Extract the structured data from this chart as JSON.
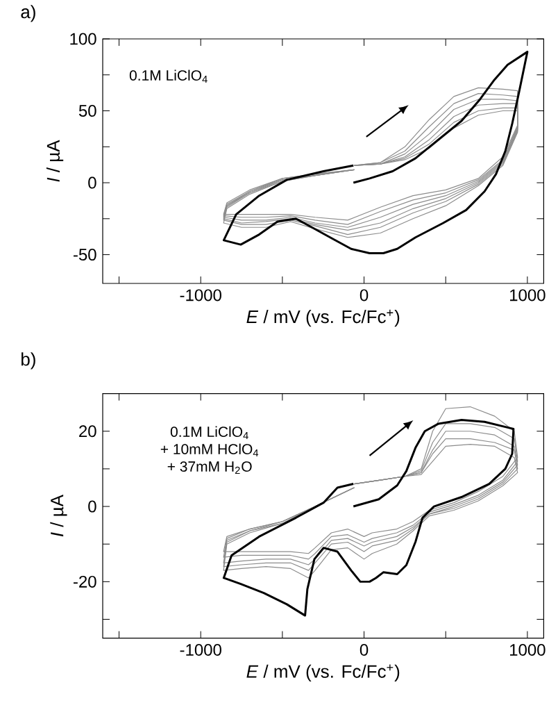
{
  "chart_data": [
    {
      "type": "line",
      "title": "a)",
      "xlabel": "*E* / mV (vs. Fc/Fc$^{+}$)",
      "ylabel": "*I* / µA",
      "xlim": [
        -1600,
        1100
      ],
      "ylim": [
        -70,
        100
      ],
      "xticks": [
        {
          "value": -1500,
          "label": null
        },
        -1000,
        {
          "value": -500,
          "label": null
        },
        0,
        {
          "value": 500,
          "label": null
        },
        1000
      ],
      "yticks": [
        -50,
        {
          "value": -25,
          "label": null
        },
        0,
        {
          "value": 25,
          "label": null
        },
        50,
        {
          "value": 75,
          "label": null
        },
        100
      ],
      "annotations": [
        "0.1M LiClO$_{4}$"
      ],
      "series": [
        {
          "color": "#8c8c8c",
          "x": [
            -60,
            100,
            250,
            400,
            550,
            700,
            850,
            940,
            940,
            850,
            700,
            500,
            300,
            100,
            -100,
            -300,
            -450,
            -600,
            -750,
            -860,
            -840,
            -700,
            -500,
            -300,
            -60
          ],
          "values": [
            12,
            14,
            25,
            44,
            60,
            66,
            65,
            64,
            40,
            18,
            3,
            -5,
            -9,
            -17,
            -26,
            -24,
            -22,
            -22,
            -22,
            -22,
            -14,
            -5,
            3,
            6,
            9
          ]
        },
        {
          "color": "#8c8c8c",
          "x": [
            -60,
            100,
            250,
            400,
            550,
            700,
            850,
            940,
            940,
            850,
            700,
            500,
            300,
            100,
            -100,
            -300,
            -450,
            -600,
            -750,
            -860,
            -840,
            -700,
            -500,
            -300,
            -60
          ],
          "values": [
            12,
            14,
            22,
            39,
            55,
            62,
            61,
            60,
            39,
            16,
            2,
            -7,
            -12,
            -20,
            -29,
            -26,
            -23,
            -24,
            -24,
            -23,
            -15,
            -6,
            3,
            6,
            9
          ]
        },
        {
          "color": "#8c8c8c",
          "x": [
            -60,
            100,
            250,
            400,
            550,
            700,
            850,
            940,
            940,
            850,
            700,
            500,
            300,
            100,
            -100,
            -300,
            -450,
            -600,
            -750,
            -860,
            -840,
            -700,
            -500,
            -300,
            -60
          ],
          "values": [
            12,
            13,
            20,
            34,
            51,
            58,
            58,
            57,
            38,
            15,
            1,
            -9,
            -15,
            -24,
            -31,
            -28,
            -24,
            -26,
            -26,
            -24,
            -16,
            -6,
            2,
            5,
            9
          ]
        },
        {
          "color": "#8c8c8c",
          "x": [
            -60,
            100,
            250,
            400,
            550,
            700,
            850,
            940,
            940,
            850,
            700,
            500,
            300,
            100,
            -100,
            -300,
            -450,
            -600,
            -750,
            -860,
            -840,
            -700,
            -500,
            -300,
            -60
          ],
          "values": [
            12,
            13,
            18,
            30,
            46,
            54,
            55,
            55,
            37,
            14,
            0,
            -11,
            -18,
            -28,
            -33,
            -29,
            -25,
            -27,
            -28,
            -25,
            -16,
            -7,
            2,
            5,
            9
          ]
        },
        {
          "color": "#8c8c8c",
          "x": [
            -60,
            100,
            250,
            400,
            550,
            700,
            850,
            940,
            940,
            850,
            700,
            500,
            300,
            100,
            -100,
            -300,
            -450,
            -600,
            -750,
            -860,
            -840,
            -700,
            -500,
            -300,
            -60
          ],
          "values": [
            12,
            13,
            17,
            27,
            42,
            50,
            52,
            52,
            36,
            13,
            -1,
            -13,
            -21,
            -31,
            -36,
            -30,
            -26,
            -29,
            -29,
            -26,
            -17,
            -7,
            1,
            5,
            9
          ]
        },
        {
          "color": "#8c8c8c",
          "x": [
            -60,
            100,
            250,
            400,
            550,
            700,
            850,
            940,
            940,
            850,
            700,
            500,
            300,
            100,
            -100,
            -300,
            -450,
            -600,
            -750,
            -860,
            -840,
            -700,
            -500,
            -300,
            -60
          ],
          "values": [
            12,
            13,
            16,
            24,
            38,
            47,
            50,
            50,
            35,
            12,
            -2,
            -16,
            -25,
            -35,
            -38,
            -32,
            -27,
            -31,
            -31,
            -28,
            -18,
            -8,
            1,
            5,
            9
          ]
        },
        {
          "color": "#000000",
          "x": [
            -65,
            34,
            175,
            315,
            456,
            597,
            710,
            794,
            879,
            1000,
            949,
            907,
            865,
            808,
            738,
            625,
            485,
            315,
            203,
            118,
            34,
            -79,
            -192,
            -304,
            -417,
            -530,
            -642,
            -755,
            -859,
            -783,
            -642,
            -473,
            -248,
            -65
          ],
          "values": [
            0,
            3,
            8,
            17,
            30,
            43,
            58,
            71,
            82,
            91,
            63,
            41,
            22,
            6,
            -6,
            -19,
            -28,
            -38,
            -46,
            -49,
            -49,
            -46,
            -39,
            -32,
            -25,
            -27,
            -36,
            -43,
            -40,
            -22,
            -9,
            2,
            8,
            12
          ]
        }
      ]
    },
    {
      "type": "line",
      "title": "b)",
      "xlabel": "*E* / mV (vs. Fc/Fc$^{+}$)",
      "ylabel": "*I* / µA",
      "xlim": [
        -1600,
        1100
      ],
      "ylim": [
        -35,
        30
      ],
      "xticks": [
        {
          "value": -1500,
          "label": null
        },
        -1000,
        {
          "value": -500,
          "label": null
        },
        0,
        {
          "value": 500,
          "label": null
        },
        1000
      ],
      "yticks": [
        {
          "value": -30,
          "label": null
        },
        -20,
        {
          "value": -10,
          "label": null
        },
        0,
        {
          "value": 10,
          "label": null
        },
        20
      ],
      "annotations": [
        "0.1M LiClO$_{4}$",
        "+ 10mM HClO$_{4}$",
        "+ 37mM H$_{2}$O"
      ],
      "series": [
        {
          "color": "#8c8c8c",
          "x": [
            -60,
            100,
            250,
            350,
            420,
            500,
            650,
            800,
            920,
            940,
            850,
            700,
            550,
            400,
            300,
            200,
            50,
            0,
            -100,
            -200,
            -300,
            -340,
            -450,
            -600,
            -750,
            -860,
            -840,
            -700,
            -500,
            -300,
            -60
          ],
          "values": [
            6,
            7,
            8,
            10,
            20,
            26,
            26.5,
            24,
            20,
            13,
            8,
            4,
            1,
            -1,
            -4,
            -6,
            -7,
            -8,
            -6,
            -7,
            -11,
            -12.5,
            -12,
            -12,
            -12,
            -12,
            -8,
            -6,
            -4,
            0,
            5
          ]
        },
        {
          "color": "#8c8c8c",
          "x": [
            -60,
            100,
            250,
            350,
            420,
            500,
            650,
            800,
            920,
            940,
            850,
            700,
            550,
            400,
            300,
            200,
            50,
            0,
            -100,
            -200,
            -300,
            -340,
            -450,
            -600,
            -750,
            -860,
            -840,
            -700,
            -500,
            -300,
            -60
          ],
          "values": [
            6,
            7,
            8,
            9.5,
            17,
            22,
            22,
            21,
            18,
            12,
            7,
            3,
            0.5,
            -1.5,
            -5,
            -7,
            -8.5,
            -9.5,
            -7.5,
            -8,
            -12.5,
            -14,
            -13,
            -13,
            -13,
            -13.5,
            -8.5,
            -6,
            -4,
            0,
            5
          ]
        },
        {
          "color": "#8c8c8c",
          "x": [
            -60,
            100,
            250,
            350,
            420,
            500,
            650,
            800,
            920,
            940,
            850,
            700,
            550,
            400,
            300,
            200,
            50,
            0,
            -100,
            -200,
            -300,
            -340,
            -450,
            -600,
            -750,
            -860,
            -840,
            -700,
            -500,
            -300,
            -60
          ],
          "values": [
            6,
            7,
            8,
            9,
            15,
            20,
            20,
            19,
            16,
            11,
            6.5,
            2.5,
            0,
            -2,
            -5.5,
            -8,
            -9.5,
            -10.5,
            -8.5,
            -9,
            -14,
            -15.5,
            -14,
            -14,
            -14.5,
            -15,
            -9,
            -6.5,
            -4,
            0,
            5
          ]
        },
        {
          "color": "#8c8c8c",
          "x": [
            -60,
            100,
            250,
            350,
            420,
            500,
            650,
            800,
            920,
            940,
            850,
            700,
            550,
            400,
            300,
            200,
            50,
            0,
            -100,
            -200,
            -300,
            -340,
            -450,
            -600,
            -750,
            -860,
            -840,
            -700,
            -500,
            -300,
            -60
          ],
          "values": [
            6,
            7,
            8,
            9,
            14,
            18,
            18,
            17,
            15,
            10,
            6,
            2,
            -0.5,
            -2,
            -6,
            -9,
            -10.5,
            -12,
            -9.5,
            -10,
            -15,
            -17,
            -15,
            -15,
            -15.5,
            -16,
            -9.5,
            -6.5,
            -4.5,
            0,
            5
          ]
        },
        {
          "color": "#8c8c8c",
          "x": [
            -60,
            100,
            250,
            350,
            420,
            500,
            650,
            800,
            920,
            940,
            850,
            700,
            550,
            400,
            300,
            200,
            50,
            0,
            -100,
            -200,
            -300,
            -340,
            -450,
            -600,
            -750,
            -860,
            -840,
            -700,
            -500,
            -300,
            -60
          ],
          "values": [
            6,
            7,
            8,
            8.5,
            12,
            16,
            16.5,
            16,
            13,
            9,
            5.5,
            1.5,
            -1,
            -2.5,
            -6.5,
            -10,
            -12.5,
            -14,
            -11,
            -11.5,
            -17,
            -19,
            -16.5,
            -16,
            -16.5,
            -17,
            -10,
            -7,
            -4.5,
            0,
            5
          ]
        },
        {
          "color": "#000000",
          "x": [
            -65,
            90,
            203,
            259,
            315,
            372,
            456,
            597,
            738,
            879,
            915,
            907,
            865,
            766,
            597,
            428,
            358,
            315,
            259,
            203,
            118,
            73,
            34,
            -23,
            -79,
            -163,
            -248,
            -304,
            -347,
            -361,
            -473,
            -614,
            -755,
            -859,
            -811,
            -642,
            -417,
            -248,
            -163,
            -65
          ],
          "values": [
            0,
            1.9,
            5.6,
            9.4,
            15.6,
            20,
            22,
            23,
            22.5,
            21,
            20.6,
            14,
            10,
            6,
            2.5,
            0,
            -3,
            -9.4,
            -15.6,
            -18,
            -17.5,
            -19,
            -20,
            -20,
            -17,
            -12,
            -11,
            -14,
            -22,
            -29,
            -26,
            -23,
            -20.6,
            -19,
            -13,
            -8,
            -3,
            1,
            5,
            6
          ]
        }
      ]
    }
  ]
}
